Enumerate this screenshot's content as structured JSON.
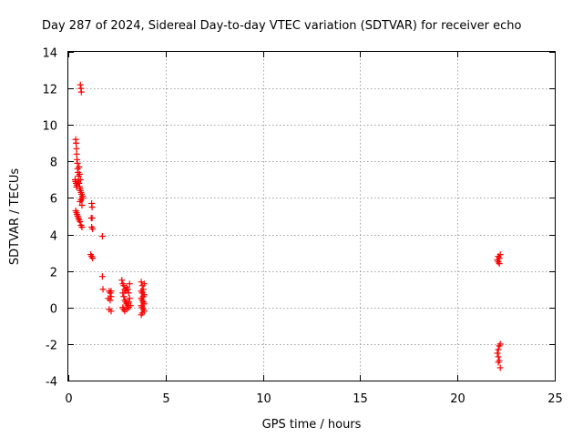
{
  "chart_data": {
    "type": "scatter",
    "title": "Day 287 of 2024, Sidereal Day-to-day VTEC variation (SDTVAR) for receiver echo",
    "xlabel": "GPS time / hours",
    "ylabel": "SDTVAR / TECUs",
    "xlim": [
      0,
      25
    ],
    "ylim": [
      -4,
      14
    ],
    "xticks": [
      0,
      5,
      10,
      15,
      20,
      25
    ],
    "yticks": [
      -4,
      -2,
      0,
      2,
      4,
      6,
      8,
      10,
      12,
      14
    ],
    "xtick_labels": [
      "0",
      "5",
      "10",
      "15",
      "20",
      "25"
    ],
    "ytick_labels": [
      "-4",
      "-2",
      "0",
      "2",
      "4",
      "6",
      "8",
      "10",
      "12",
      "14"
    ],
    "grid": true,
    "marker": "+",
    "series": [
      {
        "name": "SDTVAR",
        "color": "#ff0000",
        "points": [
          [
            0.62,
            12.2
          ],
          [
            0.65,
            12.0
          ],
          [
            0.67,
            11.8
          ],
          [
            0.38,
            9.2
          ],
          [
            0.4,
            9.0
          ],
          [
            0.42,
            8.7
          ],
          [
            0.43,
            8.4
          ],
          [
            0.45,
            8.1
          ],
          [
            0.47,
            7.9
          ],
          [
            0.48,
            7.6
          ],
          [
            0.5,
            7.4
          ],
          [
            0.52,
            7.2
          ],
          [
            0.35,
            7.0
          ],
          [
            0.37,
            6.9
          ],
          [
            0.4,
            6.8
          ],
          [
            0.42,
            6.6
          ],
          [
            0.45,
            6.7
          ],
          [
            0.5,
            6.9
          ],
          [
            0.55,
            6.8
          ],
          [
            0.58,
            6.6
          ],
          [
            0.6,
            6.5
          ],
          [
            0.62,
            6.4
          ],
          [
            0.65,
            6.3
          ],
          [
            0.68,
            6.2
          ],
          [
            0.7,
            6.0
          ],
          [
            0.72,
            6.1
          ],
          [
            0.55,
            7.7
          ],
          [
            0.58,
            7.3
          ],
          [
            0.62,
            7.0
          ],
          [
            0.75,
            6.0
          ],
          [
            0.6,
            5.8
          ],
          [
            0.65,
            5.9
          ],
          [
            0.7,
            5.6
          ],
          [
            0.38,
            5.3
          ],
          [
            0.42,
            5.2
          ],
          [
            0.45,
            5.1
          ],
          [
            0.48,
            5.0
          ],
          [
            0.52,
            4.9
          ],
          [
            0.55,
            4.8
          ],
          [
            0.6,
            4.7
          ],
          [
            0.65,
            4.5
          ],
          [
            0.7,
            4.4
          ],
          [
            1.2,
            5.7
          ],
          [
            1.22,
            5.5
          ],
          [
            1.18,
            4.9
          ],
          [
            1.22,
            4.9
          ],
          [
            1.2,
            4.4
          ],
          [
            1.25,
            4.3
          ],
          [
            1.15,
            2.9
          ],
          [
            1.2,
            2.8
          ],
          [
            1.25,
            2.7
          ],
          [
            1.75,
            3.9
          ],
          [
            1.75,
            1.7
          ],
          [
            1.78,
            1.0
          ],
          [
            2.1,
            0.9
          ],
          [
            2.15,
            0.8
          ],
          [
            2.2,
            0.9
          ],
          [
            2.05,
            0.5
          ],
          [
            2.15,
            0.4
          ],
          [
            2.2,
            0.6
          ],
          [
            2.1,
            -0.1
          ],
          [
            2.2,
            -0.2
          ],
          [
            2.75,
            1.5
          ],
          [
            2.8,
            1.3
          ],
          [
            2.85,
            1.2
          ],
          [
            2.9,
            1.0
          ],
          [
            2.95,
            0.9
          ],
          [
            3.0,
            1.1
          ],
          [
            3.05,
            1.0
          ],
          [
            3.1,
            0.8
          ],
          [
            3.15,
            1.3
          ],
          [
            2.8,
            0.8
          ],
          [
            2.85,
            0.6
          ],
          [
            2.9,
            0.4
          ],
          [
            2.95,
            0.3
          ],
          [
            3.0,
            0.2
          ],
          [
            3.05,
            0.1
          ],
          [
            3.1,
            0.3
          ],
          [
            3.15,
            0.5
          ],
          [
            2.8,
            0.0
          ],
          [
            2.85,
            -0.1
          ],
          [
            2.9,
            -0.2
          ],
          [
            3.0,
            -0.1
          ],
          [
            3.1,
            0.0
          ],
          [
            3.2,
            0.1
          ],
          [
            3.75,
            1.4
          ],
          [
            3.8,
            1.2
          ],
          [
            3.85,
            1.0
          ],
          [
            3.9,
            1.3
          ],
          [
            3.75,
            0.9
          ],
          [
            3.8,
            0.8
          ],
          [
            3.85,
            0.6
          ],
          [
            3.9,
            0.7
          ],
          [
            3.75,
            0.5
          ],
          [
            3.8,
            0.4
          ],
          [
            3.85,
            0.3
          ],
          [
            3.9,
            0.2
          ],
          [
            3.75,
            0.1
          ],
          [
            3.8,
            0.0
          ],
          [
            3.85,
            -0.1
          ],
          [
            3.9,
            -0.2
          ],
          [
            3.8,
            -0.3
          ],
          [
            3.75,
            -0.4
          ],
          [
            22.05,
            2.6
          ],
          [
            22.1,
            2.5
          ],
          [
            22.15,
            2.7
          ],
          [
            22.2,
            2.9
          ],
          [
            22.15,
            2.4
          ],
          [
            22.1,
            2.8
          ],
          [
            22.05,
            -2.5
          ],
          [
            22.1,
            -2.7
          ],
          [
            22.15,
            -2.9
          ],
          [
            22.1,
            -3.0
          ],
          [
            22.2,
            -3.3
          ],
          [
            22.15,
            -2.1
          ],
          [
            22.2,
            -2.0
          ],
          [
            22.1,
            -2.3
          ]
        ]
      }
    ]
  }
}
